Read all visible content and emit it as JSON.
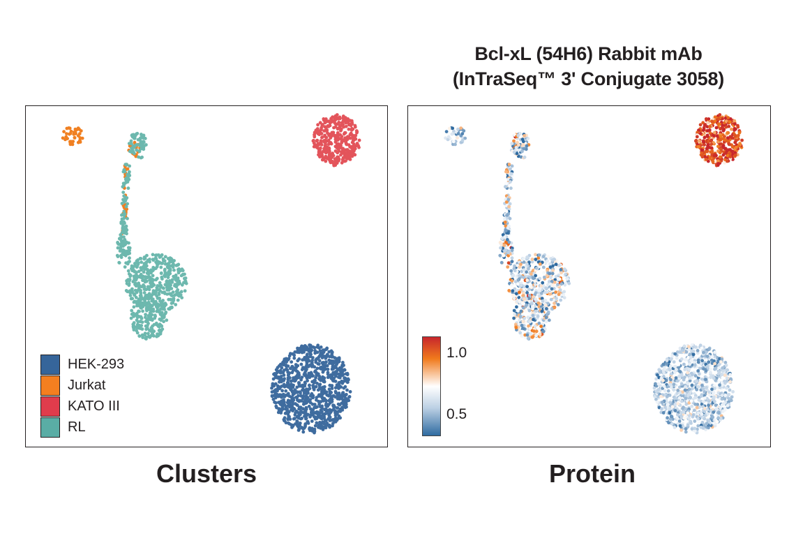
{
  "right_title": {
    "line1": "Bcl-xL (54H6) Rabbit mAb",
    "line2": "(InTraSeq™ 3' Conjugate 3058)"
  },
  "captions": {
    "left": "Clusters",
    "right": "Protein"
  },
  "chart_data": [
    {
      "type": "scatter",
      "title": "Clusters",
      "xlabel": "",
      "ylabel": "",
      "legend_position": "bottom-left",
      "legend": [
        {
          "name": "HEK-293",
          "color": "#36659a"
        },
        {
          "name": "Jurkat",
          "color": "#f47f20"
        },
        {
          "name": "KATO III",
          "color": "#e03c4c"
        },
        {
          "name": "RL",
          "color": "#5aada5"
        }
      ],
      "series": [
        {
          "name": "HEK-293",
          "color": "#3f6c9f",
          "approx_cells": 900,
          "regions": [
            {
              "shape": "ellipse",
              "cx": 0.79,
              "cy": 0.17,
              "rx": 0.11,
              "ry": 0.13
            }
          ]
        },
        {
          "name": "Jurkat",
          "color": "#f08022",
          "approx_cells": 90,
          "regions": [
            {
              "shape": "ellipse",
              "cx": 0.13,
              "cy": 0.91,
              "rx": 0.028,
              "ry": 0.032
            },
            {
              "shape": "ellipse",
              "cx": 0.3,
              "cy": 0.87,
              "rx": 0.018,
              "ry": 0.025
            },
            {
              "shape": "strip",
              "x1": 0.28,
              "y1": 0.83,
              "x2": 0.27,
              "y2": 0.62,
              "w": 0.012
            }
          ]
        },
        {
          "name": "KATO III",
          "color": "#e3545b",
          "approx_cells": 360,
          "regions": [
            {
              "shape": "ellipse",
              "cx": 0.86,
              "cy": 0.9,
              "rx": 0.065,
              "ry": 0.075
            }
          ]
        },
        {
          "name": "RL",
          "color": "#6db8ae",
          "approx_cells": 800,
          "regions": [
            {
              "shape": "ellipse",
              "cx": 0.31,
              "cy": 0.885,
              "rx": 0.025,
              "ry": 0.04
            },
            {
              "shape": "strip",
              "x1": 0.28,
              "y1": 0.83,
              "x2": 0.27,
              "y2": 0.62,
              "w": 0.018
            },
            {
              "shape": "ellipse",
              "cx": 0.36,
              "cy": 0.48,
              "rx": 0.085,
              "ry": 0.085
            },
            {
              "shape": "ellipse",
              "cx": 0.34,
              "cy": 0.38,
              "rx": 0.05,
              "ry": 0.065
            },
            {
              "shape": "ellipse",
              "cx": 0.27,
              "cy": 0.57,
              "rx": 0.02,
              "ry": 0.05
            }
          ]
        }
      ]
    },
    {
      "type": "scatter",
      "title": "Bcl-xL (54H6) Rabbit mAb (InTraSeq™ 3' Conjugate 3058)",
      "subtitle": "Protein",
      "colorbar": {
        "ticks": [
          "1.0",
          "0.5"
        ],
        "range": [
          0.3,
          1.15
        ],
        "tick_values": [
          1.0,
          0.5
        ]
      },
      "series": [
        {
          "name": "HEK-293",
          "mean_expression": 0.55,
          "spread": 0.12
        },
        {
          "name": "Jurkat",
          "mean_expression": 0.55,
          "spread": 0.15
        },
        {
          "name": "KATO III",
          "mean_expression": 1.05,
          "spread": 0.12
        },
        {
          "name": "RL",
          "mean_expression": 0.62,
          "spread": 0.2
        }
      ]
    }
  ]
}
